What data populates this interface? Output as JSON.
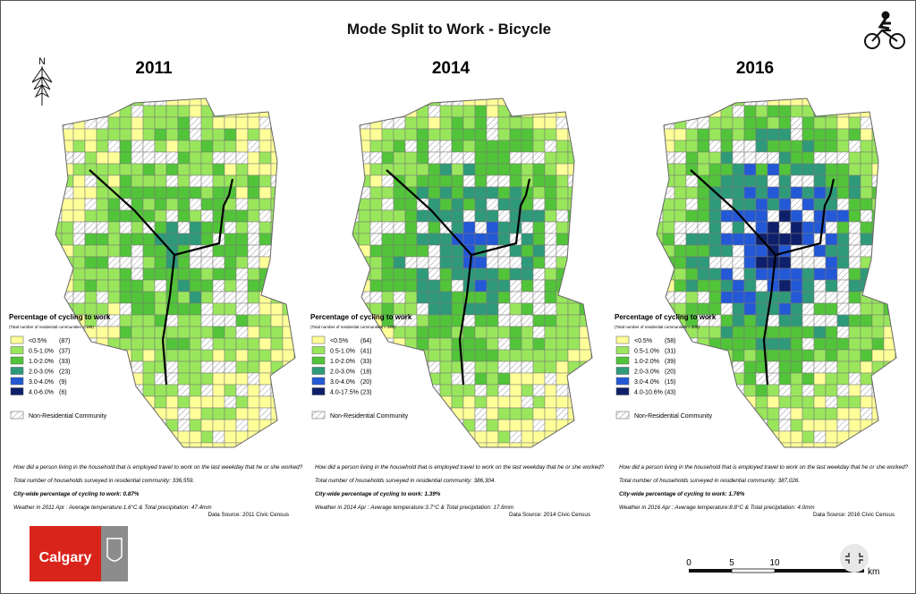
{
  "title": "Mode Split to Work - Bicycle",
  "compass": "N",
  "panels": [
    {
      "year": "2011",
      "legend_title": "Percentage of cycling to work",
      "legend_subtitle": "(Total number of residential communities = 195)",
      "legend": [
        {
          "label": "<0.5%",
          "count": "(87)",
          "color": "#ffff99"
        },
        {
          "label": "0.5-1.0%",
          "count": "(37)",
          "color": "#99e65c"
        },
        {
          "label": "1.0-2.0%",
          "count": "(33)",
          "color": "#52c43a"
        },
        {
          "label": "2.0-3.0%",
          "count": "(23)",
          "color": "#2e9a7a"
        },
        {
          "label": "3.0-4.0%",
          "count": "(9)",
          "color": "#2358d6"
        },
        {
          "label": "4.0-6.0%",
          "count": "(6)",
          "color": "#0e1f6b"
        }
      ],
      "non_residential": "Non-Residential Community",
      "question": "How did a person living in the household that is employed travel to work on the last weekday that he or she worked?",
      "households": "Total number of households surveyed in residential community: 336,559.",
      "citywide": "City-wide percentage of cycling to work: 0.87%",
      "weather": "Weather in 2011 Apr : Average temperature:1.6°C & Total precipitation: 47.4mm",
      "source": "Data Source: 2011 Civic Census"
    },
    {
      "year": "2014",
      "legend_title": "Percentage of cycling to work",
      "legend_subtitle": "(Total number of residential communities = 199)",
      "legend": [
        {
          "label": "<0.5%",
          "count": "(64)",
          "color": "#ffff99"
        },
        {
          "label": "0.5-1.0%",
          "count": "(41)",
          "color": "#99e65c"
        },
        {
          "label": "1.0-2.0%",
          "count": "(33)",
          "color": "#52c43a"
        },
        {
          "label": "2.0-3.0%",
          "count": "(18)",
          "color": "#2e9a7a"
        },
        {
          "label": "3.0-4.0%",
          "count": "(20)",
          "color": "#2358d6"
        },
        {
          "label": "4.0-17.5%",
          "count": "(23)",
          "color": "#0e1f6b"
        }
      ],
      "non_residential": "Non-Residential Community",
      "question": "How did a person living in the household that is employed travel to work on the last weekday that he or she worked?",
      "households": "Total number of households surveyed in residential community: 386,304.",
      "citywide": "City-wide percentage of cycling to work: 1.39%",
      "weather": "Weather in 2014 Apr : Average temperature:3.7°C & Total precipitation: 17.6mm",
      "source": "Data Source: 2014 Civic Census"
    },
    {
      "year": "2016",
      "legend_title": "Percentage of cycling to work",
      "legend_subtitle": "(Total number of residential communities = 206)",
      "legend": [
        {
          "label": "<0.5%",
          "count": "(58)",
          "color": "#ffff99"
        },
        {
          "label": "0.5-1.0%",
          "count": "(31)",
          "color": "#99e65c"
        },
        {
          "label": "1.0-2.0%",
          "count": "(39)",
          "color": "#52c43a"
        },
        {
          "label": "2.0-3.0%",
          "count": "(20)",
          "color": "#2e9a7a"
        },
        {
          "label": "3.0-4.0%",
          "count": "(15)",
          "color": "#2358d6"
        },
        {
          "label": "4.0-10.6%",
          "count": "(43)",
          "color": "#0e1f6b"
        }
      ],
      "non_residential": "Non-Residential Community",
      "question": "How did a person living in the household that is employed travel to work on the last weekday that he or she worked?",
      "households": "Total number of households surveyed in residential community: 387,026.",
      "citywide": "City-wide percentage of cycling to work: 1.76%",
      "weather": "Weather in 2016 Apr : Average temperature:8.8°C & Total precipitation: 4.0mm",
      "source": "Data Source: 2016 Civic Census"
    }
  ],
  "logo": "Calgary",
  "scale": {
    "ticks": [
      "0",
      "5",
      "10"
    ],
    "unit": "km"
  }
}
